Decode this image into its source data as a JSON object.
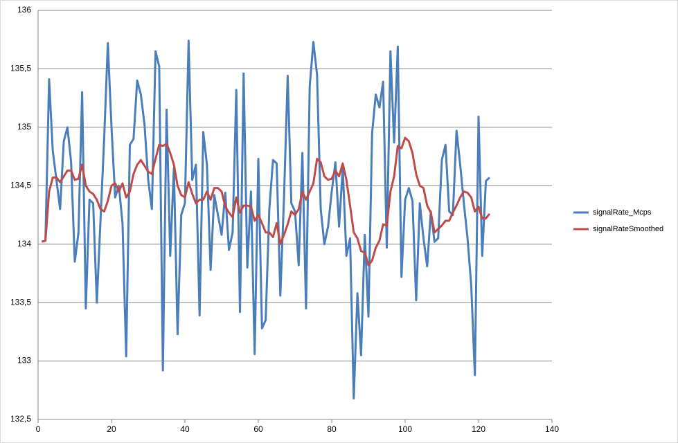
{
  "chart_data": {
    "type": "line",
    "x": [
      1,
      2,
      3,
      4,
      5,
      6,
      7,
      8,
      9,
      10,
      11,
      12,
      13,
      14,
      15,
      16,
      17,
      18,
      19,
      20,
      21,
      22,
      23,
      24,
      25,
      26,
      27,
      28,
      29,
      30,
      31,
      32,
      33,
      34,
      35,
      36,
      37,
      38,
      39,
      40,
      41,
      42,
      43,
      44,
      45,
      46,
      47,
      48,
      49,
      50,
      51,
      52,
      53,
      54,
      55,
      56,
      57,
      58,
      59,
      60,
      61,
      62,
      63,
      64,
      65,
      66,
      67,
      68,
      69,
      70,
      71,
      72,
      73,
      74,
      75,
      76,
      77,
      78,
      79,
      80,
      81,
      82,
      83,
      84,
      85,
      86,
      87,
      88,
      89,
      90,
      91,
      92,
      93,
      94,
      95,
      96,
      97,
      98,
      99,
      100,
      101,
      102,
      103,
      104,
      105,
      106,
      107,
      108,
      109,
      110,
      111,
      112,
      113,
      114,
      115,
      116,
      117,
      118,
      119,
      120,
      121,
      122,
      123
    ],
    "series": [
      {
        "name": "signalRate_Mcps",
        "color": "#4a7ebb",
        "values": [
          134.02,
          134.03,
          135.41,
          134.8,
          134.55,
          134.3,
          134.88,
          135.0,
          134.7,
          133.85,
          134.1,
          135.3,
          133.45,
          134.38,
          134.35,
          133.5,
          134.2,
          134.9,
          135.72,
          135.0,
          134.4,
          134.5,
          134.18,
          133.04,
          134.85,
          134.9,
          135.4,
          135.28,
          135.02,
          134.55,
          134.3,
          135.65,
          135.52,
          132.92,
          135.15,
          133.9,
          134.65,
          133.23,
          134.25,
          134.35,
          135.74,
          134.55,
          134.68,
          133.39,
          134.96,
          134.68,
          133.78,
          134.42,
          134.25,
          134.08,
          134.44,
          133.95,
          134.1,
          135.32,
          133.42,
          135.46,
          133.8,
          134.45,
          133.06,
          134.73,
          133.28,
          133.35,
          134.3,
          134.72,
          134.69,
          133.56,
          134.4,
          135.44,
          134.35,
          134.28,
          133.82,
          134.78,
          133.45,
          135.35,
          135.73,
          135.45,
          134.3,
          134.0,
          134.15,
          134.45,
          134.7,
          134.15,
          134.65,
          133.9,
          134.05,
          132.68,
          133.58,
          133.05,
          134.08,
          133.38,
          134.95,
          135.28,
          135.17,
          135.39,
          133.97,
          135.65,
          134.87,
          135.69,
          133.72,
          134.38,
          134.48,
          134.37,
          133.52,
          134.35,
          134.05,
          133.81,
          134.28,
          134.02,
          134.05,
          134.72,
          134.85,
          134.28,
          134.25,
          134.97,
          134.68,
          134.35,
          134.05,
          133.65,
          132.88,
          135.09,
          133.9,
          134.54,
          134.57
        ]
      },
      {
        "name": "signalRateSmoothed",
        "color": "#be4b48",
        "values": [
          134.02,
          134.03,
          134.45,
          134.57,
          134.57,
          134.53,
          134.58,
          134.63,
          134.63,
          134.55,
          134.56,
          134.68,
          134.5,
          134.45,
          134.43,
          134.38,
          134.3,
          134.28,
          134.37,
          134.5,
          134.52,
          134.45,
          134.52,
          134.4,
          134.45,
          134.6,
          134.68,
          134.72,
          134.67,
          134.62,
          134.6,
          134.73,
          134.85,
          134.84,
          134.86,
          134.78,
          134.68,
          134.5,
          134.42,
          134.4,
          134.53,
          134.43,
          134.35,
          134.38,
          134.38,
          134.45,
          134.38,
          134.48,
          134.48,
          134.45,
          134.32,
          134.27,
          134.23,
          134.4,
          134.27,
          134.33,
          134.33,
          134.32,
          134.2,
          134.25,
          134.18,
          134.1,
          134.1,
          134.06,
          134.18,
          134.0,
          134.08,
          134.17,
          134.28,
          134.25,
          134.3,
          134.45,
          134.38,
          134.45,
          134.52,
          134.73,
          134.7,
          134.58,
          134.55,
          134.56,
          134.63,
          134.58,
          134.69,
          134.55,
          134.33,
          134.1,
          134.05,
          133.94,
          133.93,
          133.82,
          133.86,
          133.97,
          134.03,
          134.17,
          134.16,
          134.45,
          134.58,
          134.84,
          134.82,
          134.91,
          134.88,
          134.78,
          134.6,
          134.5,
          134.48,
          134.33,
          134.27,
          134.1,
          134.13,
          134.16,
          134.2,
          134.2,
          134.27,
          134.33,
          134.4,
          134.45,
          134.44,
          134.4,
          134.28,
          134.32,
          134.22,
          134.22,
          134.26
        ]
      }
    ],
    "xlim": [
      0,
      140
    ],
    "xticks": [
      0,
      20,
      40,
      60,
      80,
      100,
      120,
      140
    ],
    "ylim": [
      132.5,
      136
    ],
    "yticks": [
      {
        "value": 132.5,
        "label": "132,5"
      },
      133,
      {
        "value": 133.5,
        "label": "133,5"
      },
      134,
      {
        "value": 134.5,
        "label": "134,5"
      },
      135,
      {
        "value": 135.5,
        "label": "135,5"
      },
      136
    ],
    "grid": true,
    "legend": "right"
  }
}
